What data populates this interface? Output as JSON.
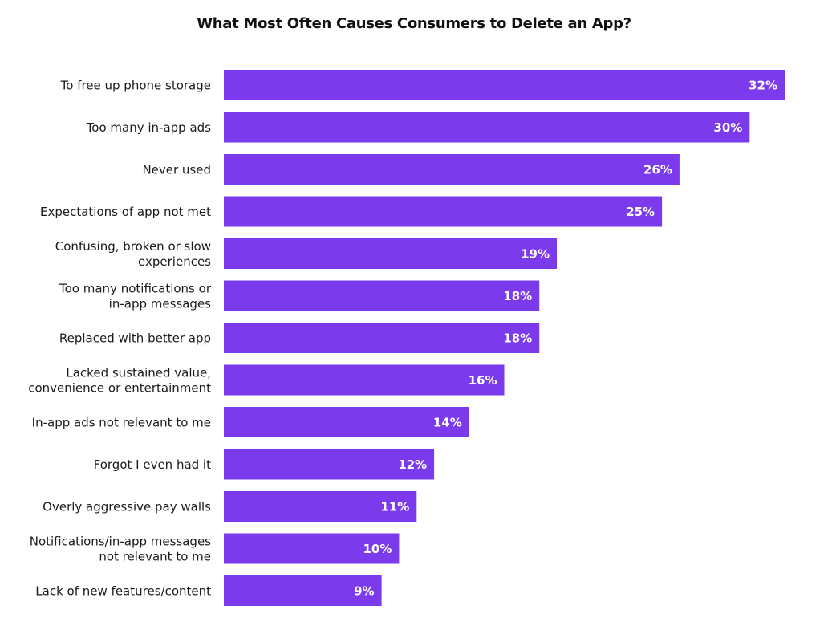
{
  "chart_data": {
    "type": "bar",
    "orientation": "horizontal",
    "title": "What Most Often Causes Consumers to Delete an App?",
    "xlabel": "",
    "ylabel": "",
    "value_suffix": "%",
    "xlim": [
      0,
      32
    ],
    "grid": false,
    "legend": "none",
    "bar_color": "#7B3AEC",
    "categories": [
      [
        "To free up phone storage"
      ],
      [
        "Too many in-app ads"
      ],
      [
        "Never used"
      ],
      [
        "Expectations of app not met"
      ],
      [
        "Confusing, broken or slow",
        "experiences"
      ],
      [
        "Too many notifications or",
        "in-app messages"
      ],
      [
        "Replaced with better app"
      ],
      [
        "Lacked sustained value,",
        "convenience or entertainment"
      ],
      [
        "In-app ads not relevant to me"
      ],
      [
        "Forgot I even had it"
      ],
      [
        "Overly aggressive pay walls"
      ],
      [
        "Notifications/in-app messages",
        "not relevant to me"
      ],
      [
        "Lack of new features/content"
      ]
    ],
    "values": [
      32,
      30,
      26,
      25,
      19,
      18,
      18,
      16,
      14,
      12,
      11,
      10,
      9
    ]
  }
}
